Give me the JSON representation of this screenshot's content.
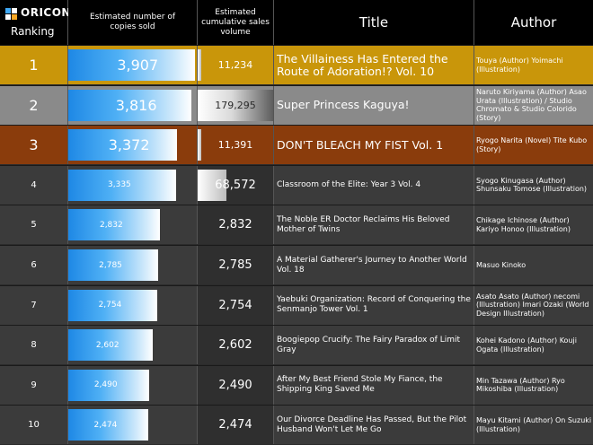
{
  "header": {
    "logo_text": "ORICON",
    "ranking_label": "Ranking",
    "copies_label": "Estimated number of copies sold",
    "cumulative_label": "Estimated cumulative sales volume",
    "title_label": "Title",
    "author_label": "Author"
  },
  "colors": {
    "rank1": "#c9960a",
    "rank2": "#8a8a8a",
    "rank3": "#8a3c0c",
    "rank_other": "#3b3b3b",
    "bar_blue": "#1e88e5"
  },
  "chart_data": {
    "type": "table",
    "xlim_copies": [
      0,
      4000
    ],
    "rows": [
      {
        "rank": "1",
        "copies": 3907,
        "copies_label": "3,907",
        "cumulative": 11234,
        "cumulative_label": "11,234",
        "cum_fill": 0.03,
        "title": "The Villainess Has Entered the Route of Adoration!? Vol. 10",
        "author": "Touya (Author) Yoimachi (Illustration)"
      },
      {
        "rank": "2",
        "copies": 3816,
        "copies_label": "3,816",
        "cumulative": 179295,
        "cumulative_label": "179,295",
        "cum_fill": 1.0,
        "title": "Super Princess Kaguya!",
        "author": "Naruto Kiriyama (Author) Asao Urata (Illustration) / Studio Chromato & Studio Colorido (Story)"
      },
      {
        "rank": "3",
        "copies": 3372,
        "copies_label": "3,372",
        "cumulative": 11391,
        "cumulative_label": "11,391",
        "cum_fill": 0.03,
        "title": "DON'T BLEACH MY FIST Vol. 1",
        "author": "Ryogo Narita (Novel) Tite Kubo (Story)"
      },
      {
        "rank": "4",
        "copies": 3335,
        "copies_label": "3,335",
        "cumulative": 68572,
        "cumulative_label": "68,572",
        "cum_fill": 0.38,
        "title": "Classroom of the Elite: Year 3 Vol. 4",
        "author": "Syogo Kinugasa (Author) Shunsaku Tomose (Illustration)"
      },
      {
        "rank": "5",
        "copies": 2832,
        "copies_label": "2,832",
        "cumulative": 2832,
        "cumulative_label": "2,832",
        "cum_fill": 0,
        "title": "The Noble ER Doctor Reclaims His Beloved Mother of Twins",
        "author": "Chikage Ichinose (Author) Kariyo Honoo (Illustration)"
      },
      {
        "rank": "6",
        "copies": 2785,
        "copies_label": "2,785",
        "cumulative": 2785,
        "cumulative_label": "2,785",
        "cum_fill": 0,
        "title": "A Material Gatherer's Journey to Another World Vol. 18",
        "author": "Masuo Kinoko"
      },
      {
        "rank": "7",
        "copies": 2754,
        "copies_label": "2,754",
        "cumulative": 2754,
        "cumulative_label": "2,754",
        "cum_fill": 0,
        "title": "Yaebuki Organization: Record of Conquering the Senmanjo Tower Vol. 1",
        "author": "Asato Asato (Author) necomi (Illustration) Imari Ozaki (World Design Illustration)"
      },
      {
        "rank": "8",
        "copies": 2602,
        "copies_label": "2,602",
        "cumulative": 2602,
        "cumulative_label": "2,602",
        "cum_fill": 0,
        "title": "Boogiepop Crucify: The Fairy Paradox of Limit Gray",
        "author": "Kohei Kadono (Author) Kouji Ogata (Illustration)"
      },
      {
        "rank": "9",
        "copies": 2490,
        "copies_label": "2,490",
        "cumulative": 2490,
        "cumulative_label": "2,490",
        "cum_fill": 0,
        "title": "After My Best Friend Stole My Fiance, the Shipping King Saved Me",
        "author": "Min Tazawa (Author) Ryo Mikoshiba (Illustration)"
      },
      {
        "rank": "10",
        "copies": 2474,
        "copies_label": "2,474",
        "cumulative": 2474,
        "cumulative_label": "2,474",
        "cum_fill": 0,
        "title": "Our Divorce Deadline Has Passed, But the Pilot Husband Won't Let Me Go",
        "author": "Mayu Kitami (Author) On Suzuki (Illustration)"
      }
    ]
  }
}
